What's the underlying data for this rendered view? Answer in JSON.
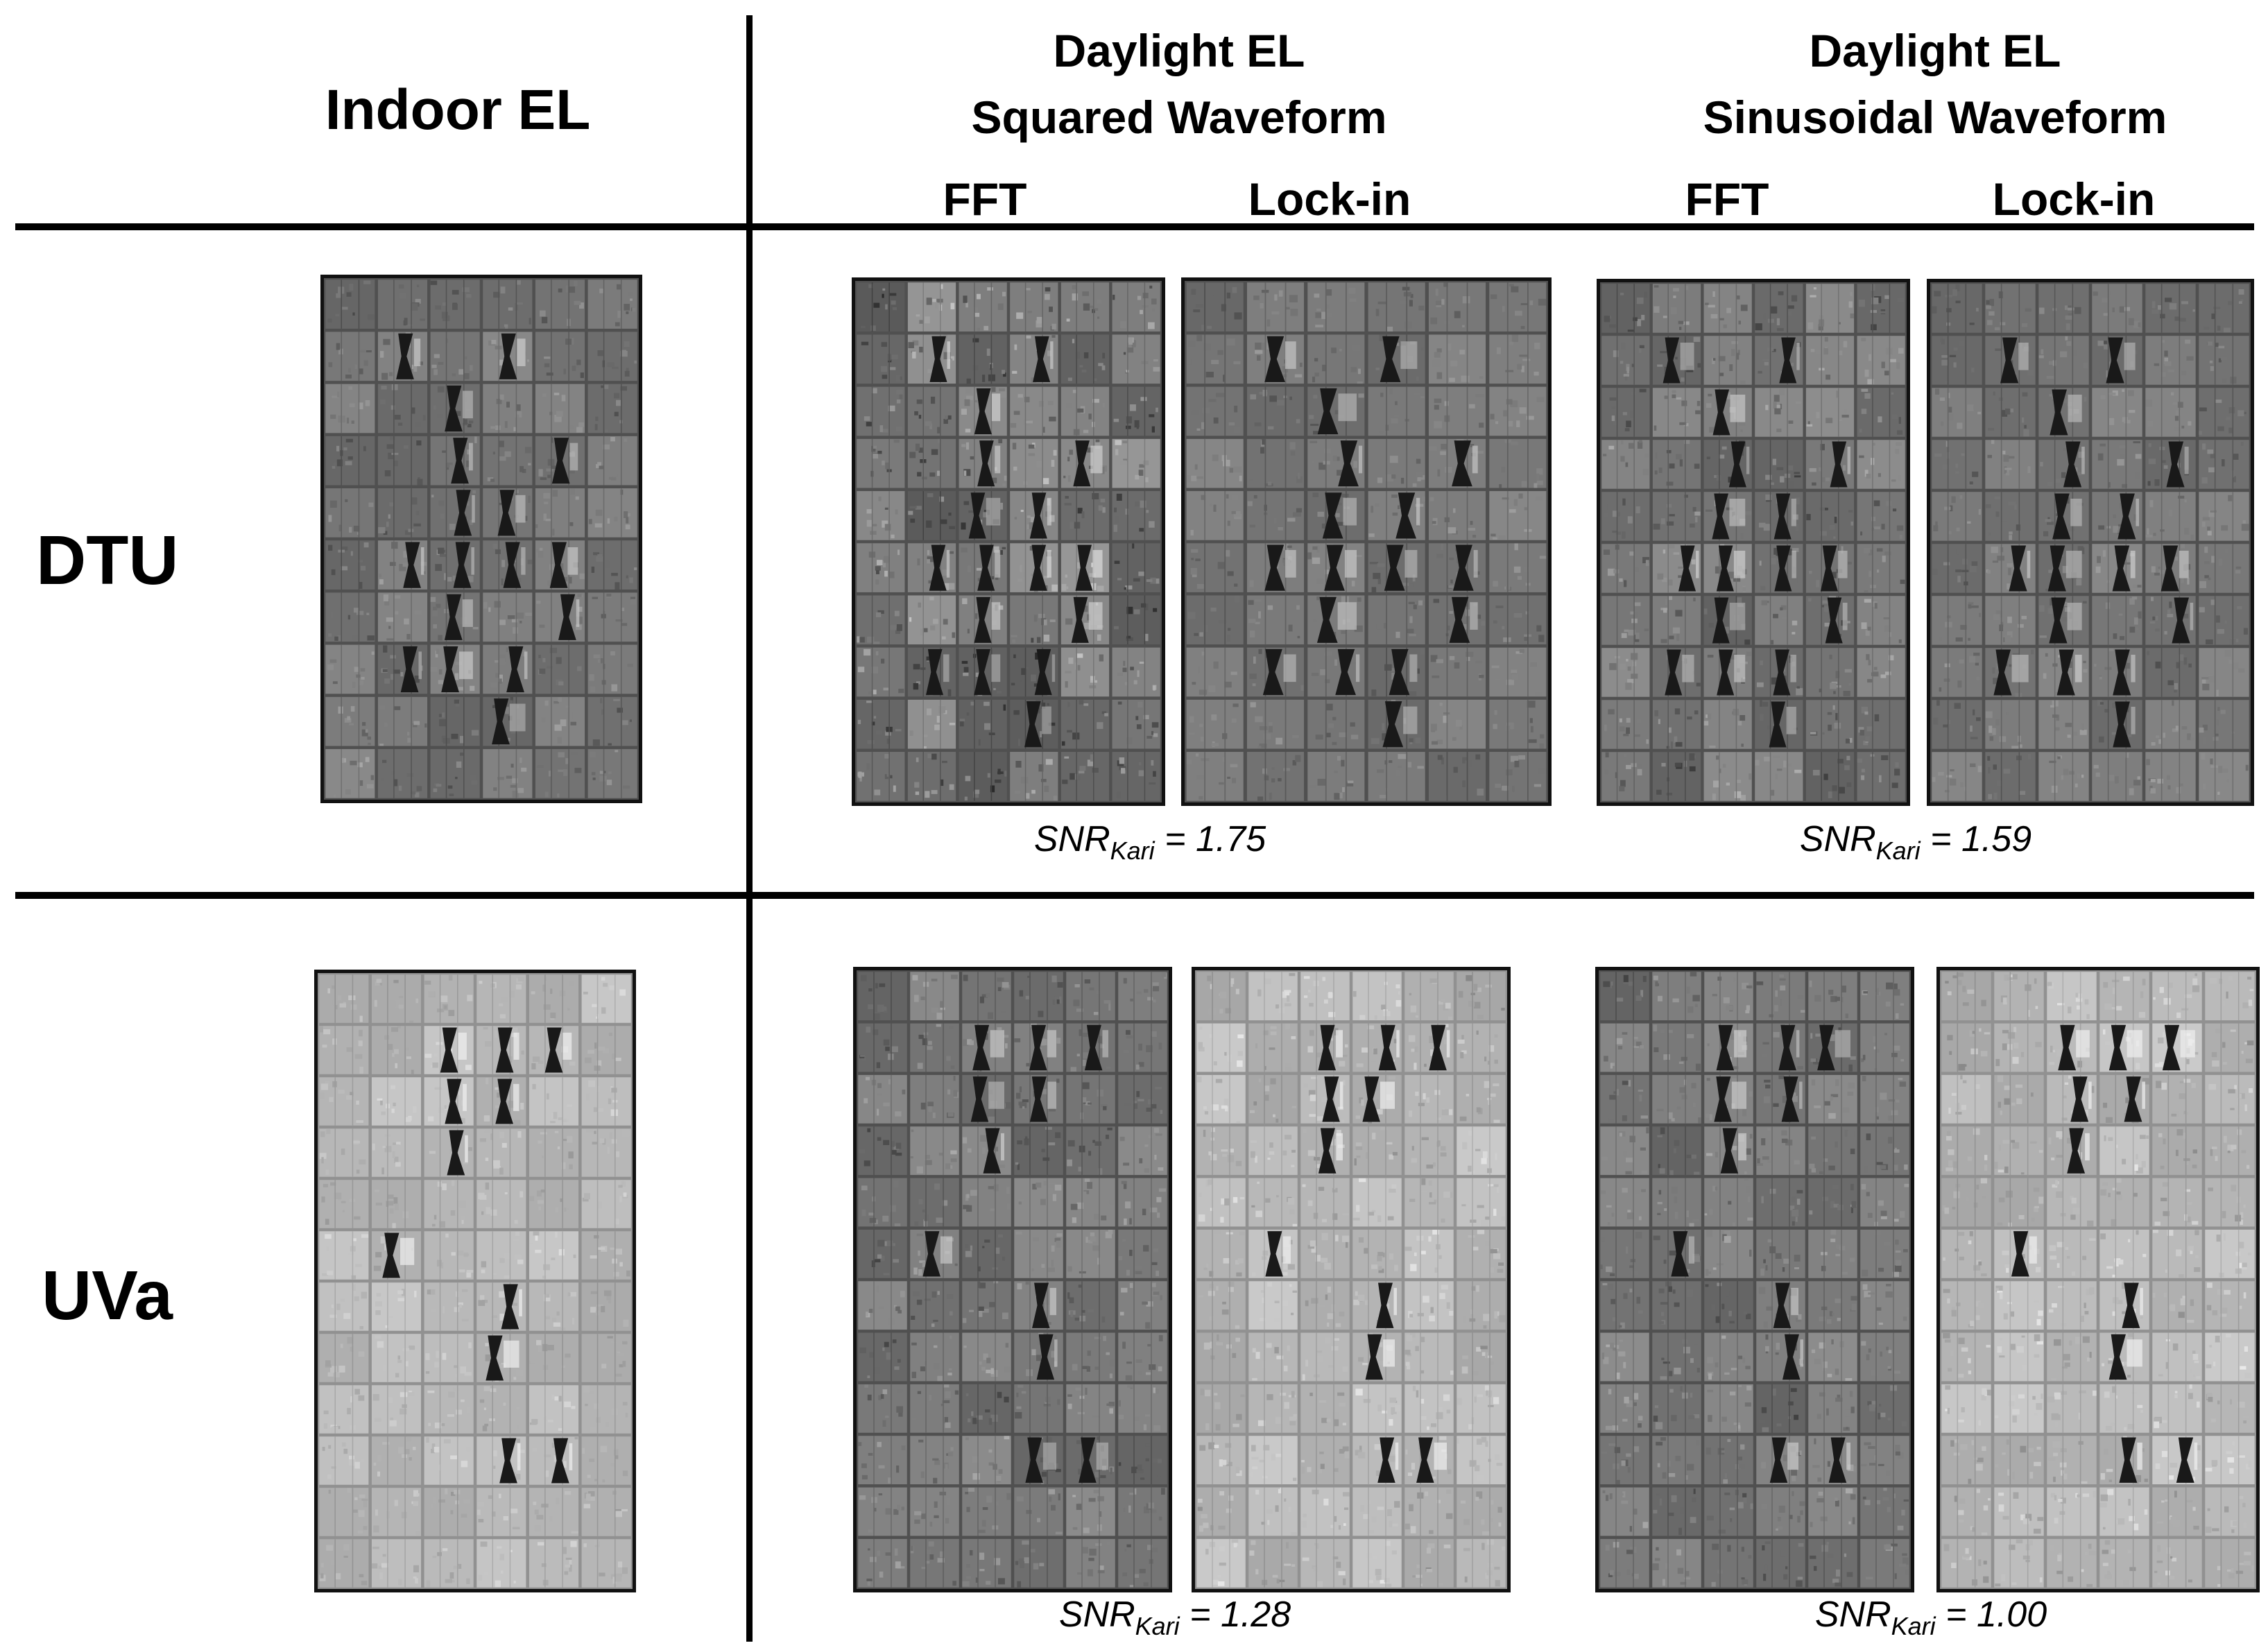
{
  "headers": {
    "indoor": "Indoor EL",
    "group_square_line1": "Daylight EL",
    "group_square_line2": "Squared Waveform",
    "group_sine_line1": "Daylight EL",
    "group_sine_line2": "Sinusoidal Waveform",
    "sq_fft": "FFT",
    "sq_lockin": "Lock-in",
    "sin_fft": "FFT",
    "sin_lockin": "Lock-in"
  },
  "rows": {
    "dtu": "DTU",
    "uva": "UVa"
  },
  "snr": {
    "label": "SNR",
    "subscript": "Kari",
    "dtu_square": "= 1.75",
    "dtu_sine": "= 1.59",
    "uva_square": "= 1.28",
    "uva_sine": "= 1.00"
  },
  "colors": {
    "dtu_base": "#7a7a7a",
    "uva_base": "#b8b8b8",
    "grid_dark": "#2a2a2a"
  }
}
